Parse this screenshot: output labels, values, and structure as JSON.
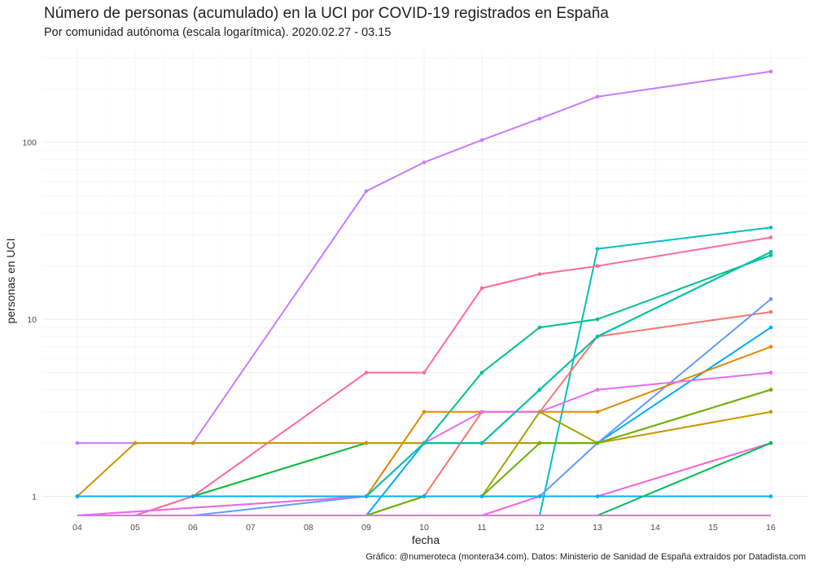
{
  "chart_data": {
    "type": "line",
    "title": "Número de personas (acumulado) en la UCI por COVID-19 registrados en España",
    "subtitle": "Por comunidad autónoma (escala logarítmica). 2020.02.27 - 03.15",
    "caption": "Gráfico: @numeroteca (montera34.com). Datos: Ministerio de Sanidad de España extraídos por Datadista.com",
    "xlabel": "fecha",
    "ylabel": "personas en UCI",
    "x_categories": [
      "04",
      "05",
      "06",
      "07",
      "08",
      "09",
      "10",
      "11",
      "12",
      "13",
      "14",
      "15",
      "16"
    ],
    "y_scale": "log",
    "ylim": [
      0.78,
      330
    ],
    "y_ticks": [
      1,
      10,
      100
    ],
    "y_tick_labels": [
      "1",
      "10",
      "100"
    ],
    "grid": true,
    "legend": "none",
    "series": [
      {
        "color": "#C77CFF",
        "x": [
          "04",
          "05",
          "06",
          "09",
          "10",
          "11",
          "12",
          "13",
          "16"
        ],
        "y": [
          2,
          2,
          2,
          53,
          77,
          103,
          136,
          181,
          251
        ]
      },
      {
        "color": "#00BFC4",
        "x": [
          "12",
          "13",
          "16"
        ],
        "y": [
          0.78,
          25,
          33
        ]
      },
      {
        "color": "#FB61D7",
        "x": [
          "04",
          "09",
          "10",
          "11",
          "12",
          "13",
          "16"
        ],
        "y": [
          0.78,
          0.78,
          0.78,
          0.78,
          1,
          1,
          2
        ]
      },
      {
        "color": "#FF689F",
        "x": [
          "05",
          "06",
          "09",
          "10",
          "11",
          "12",
          "13",
          "16"
        ],
        "y": [
          0.78,
          1,
          5,
          5,
          15,
          18,
          20,
          29
        ]
      },
      {
        "color": "#00C08B",
        "x": [
          "10",
          "11",
          "12",
          "13",
          "16"
        ],
        "y": [
          2,
          5,
          9,
          10,
          23
        ]
      },
      {
        "color": "#00BA38",
        "x": [
          "04",
          "06",
          "09",
          "10",
          "11",
          "12",
          "13",
          "16"
        ],
        "y": [
          1,
          1,
          2,
          2,
          2,
          4,
          8,
          24
        ]
      },
      {
        "color": "#F8766D",
        "x": [
          "04",
          "09",
          "10",
          "11",
          "12",
          "13",
          "16"
        ],
        "y": [
          1,
          1,
          1,
          3,
          3,
          8,
          11
        ]
      },
      {
        "color": "#00A9FF",
        "x": [
          "09",
          "10",
          "11",
          "12",
          "13",
          "16"
        ],
        "y": [
          0.78,
          2,
          2,
          2,
          2,
          9
        ]
      },
      {
        "color": "#619CFF",
        "x": [
          "04",
          "06",
          "09",
          "10",
          "11",
          "12",
          "13",
          "16"
        ],
        "y": [
          0.78,
          0.78,
          1,
          1,
          1,
          1,
          2,
          13
        ]
      },
      {
        "color": "#E58700",
        "x": [
          "04",
          "09",
          "10",
          "11",
          "12",
          "13",
          "16"
        ],
        "y": [
          0.78,
          1,
          3,
          3,
          3,
          3,
          7
        ]
      },
      {
        "color": "#E76BF3",
        "x": [
          "04",
          "09",
          "10",
          "11",
          "12",
          "13",
          "16"
        ],
        "y": [
          0.78,
          1,
          2,
          3,
          3,
          4,
          5
        ]
      },
      {
        "color": "#A3A500",
        "x": [
          "09",
          "10",
          "11",
          "12",
          "13",
          "16"
        ],
        "y": [
          0.78,
          1,
          1,
          3,
          2,
          4
        ]
      },
      {
        "color": "#C99800",
        "x": [
          "04",
          "05",
          "06",
          "09",
          "10",
          "11",
          "12",
          "13",
          "16"
        ],
        "y": [
          1,
          2,
          2,
          2,
          2,
          2,
          2,
          2,
          3
        ]
      },
      {
        "color": "#6BB100",
        "x": [
          "09",
          "10",
          "11",
          "12",
          "13",
          "16"
        ],
        "y": [
          0.78,
          1,
          1,
          2,
          2,
          4
        ]
      },
      {
        "color": "#00C0AF",
        "x": [
          "04",
          "09",
          "10",
          "11",
          "12",
          "13",
          "16"
        ],
        "y": [
          1,
          1,
          2,
          2,
          4,
          8,
          24
        ]
      },
      {
        "color": "#00B0F6",
        "x": [
          "04",
          "09",
          "10",
          "11",
          "12",
          "13",
          "16"
        ],
        "y": [
          1,
          1,
          1,
          1,
          1,
          1,
          1
        ]
      },
      {
        "color": "#00BD5C",
        "x": [
          "13",
          "16"
        ],
        "y": [
          0.78,
          2
        ]
      },
      {
        "color": "#D575FE",
        "x": [
          "04",
          "09",
          "10",
          "11",
          "12",
          "13",
          "16"
        ],
        "y": [
          0.78,
          0.78,
          0.78,
          0.78,
          0.78,
          0.78,
          0.78
        ]
      }
    ]
  }
}
